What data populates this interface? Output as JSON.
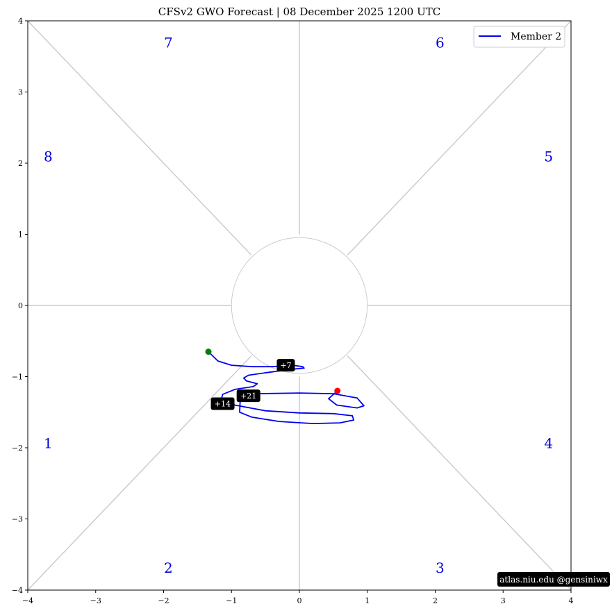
{
  "chart_data": {
    "type": "line",
    "title": "CFSv2 GWO Forecast   |   08  December  2025 1200 UTC",
    "xlim": [
      -4,
      4
    ],
    "ylim": [
      -4,
      4
    ],
    "xticks": [
      -4,
      -3,
      -2,
      -1,
      0,
      1,
      2,
      3,
      4
    ],
    "yticks": [
      -4,
      -3,
      -2,
      -1,
      0,
      1,
      2,
      3,
      4
    ],
    "xtick_labels": [
      "−4",
      "−3",
      "−2",
      "−1",
      "0",
      "1",
      "2",
      "3",
      "4"
    ],
    "ytick_labels": [
      "−4",
      "−3",
      "−2",
      "−1",
      "0",
      "1",
      "2",
      "3",
      "4"
    ],
    "legend": {
      "position": "top-right",
      "entries": [
        {
          "name": "Member 2",
          "color": "#0000ee"
        }
      ]
    },
    "unit_circle_radius": 1,
    "phase_labels": [
      {
        "label": "1",
        "x": -3.7,
        "y": -1.95
      },
      {
        "label": "2",
        "x": -1.93,
        "y": -3.7
      },
      {
        "label": "3",
        "x": 2.07,
        "y": -3.7
      },
      {
        "label": "4",
        "x": 3.67,
        "y": -1.95
      },
      {
        "label": "5",
        "x": 3.67,
        "y": 2.08
      },
      {
        "label": "6",
        "x": 2.07,
        "y": 3.68
      },
      {
        "label": "7",
        "x": -1.93,
        "y": 3.68
      },
      {
        "label": "8",
        "x": -3.7,
        "y": 2.08
      }
    ],
    "series": [
      {
        "name": "Member 2",
        "color": "#0000ee",
        "x": [
          -1.34,
          -1.2,
          -1.0,
          -0.7,
          -0.4,
          -0.1,
          0.05,
          0.07,
          -0.15,
          -0.45,
          -0.75,
          -0.82,
          -0.78,
          -0.62,
          -0.68,
          -0.95,
          -1.13,
          -1.15,
          -0.95,
          -0.5,
          0.0,
          0.5,
          0.78,
          0.8,
          0.6,
          0.2,
          -0.3,
          -0.7,
          -0.88,
          -0.87,
          -0.6,
          0.0,
          0.5,
          0.85,
          0.95,
          0.85,
          0.55,
          0.43,
          0.56
        ],
        "y": [
          -0.65,
          -0.78,
          -0.84,
          -0.86,
          -0.86,
          -0.84,
          -0.86,
          -0.88,
          -0.9,
          -0.94,
          -0.98,
          -1.02,
          -1.06,
          -1.1,
          -1.14,
          -1.18,
          -1.25,
          -1.32,
          -1.4,
          -1.48,
          -1.51,
          -1.52,
          -1.55,
          -1.61,
          -1.65,
          -1.66,
          -1.63,
          -1.57,
          -1.5,
          -1.27,
          -1.24,
          -1.23,
          -1.24,
          -1.3,
          -1.41,
          -1.44,
          -1.4,
          -1.31,
          -1.2
        ]
      }
    ],
    "start_point": {
      "x": -1.34,
      "y": -0.65,
      "color": "#008000"
    },
    "end_point": {
      "x": 0.56,
      "y": -1.2,
      "color": "#ff0000"
    },
    "day_labels": [
      {
        "text": "+7",
        "x": -0.2,
        "y": -0.84
      },
      {
        "text": "+14",
        "x": -1.13,
        "y": -1.38
      },
      {
        "text": "+21",
        "x": -0.75,
        "y": -1.27
      }
    ]
  },
  "footer": {
    "credit": "atlas.niu.edu  @gensiniwx"
  }
}
